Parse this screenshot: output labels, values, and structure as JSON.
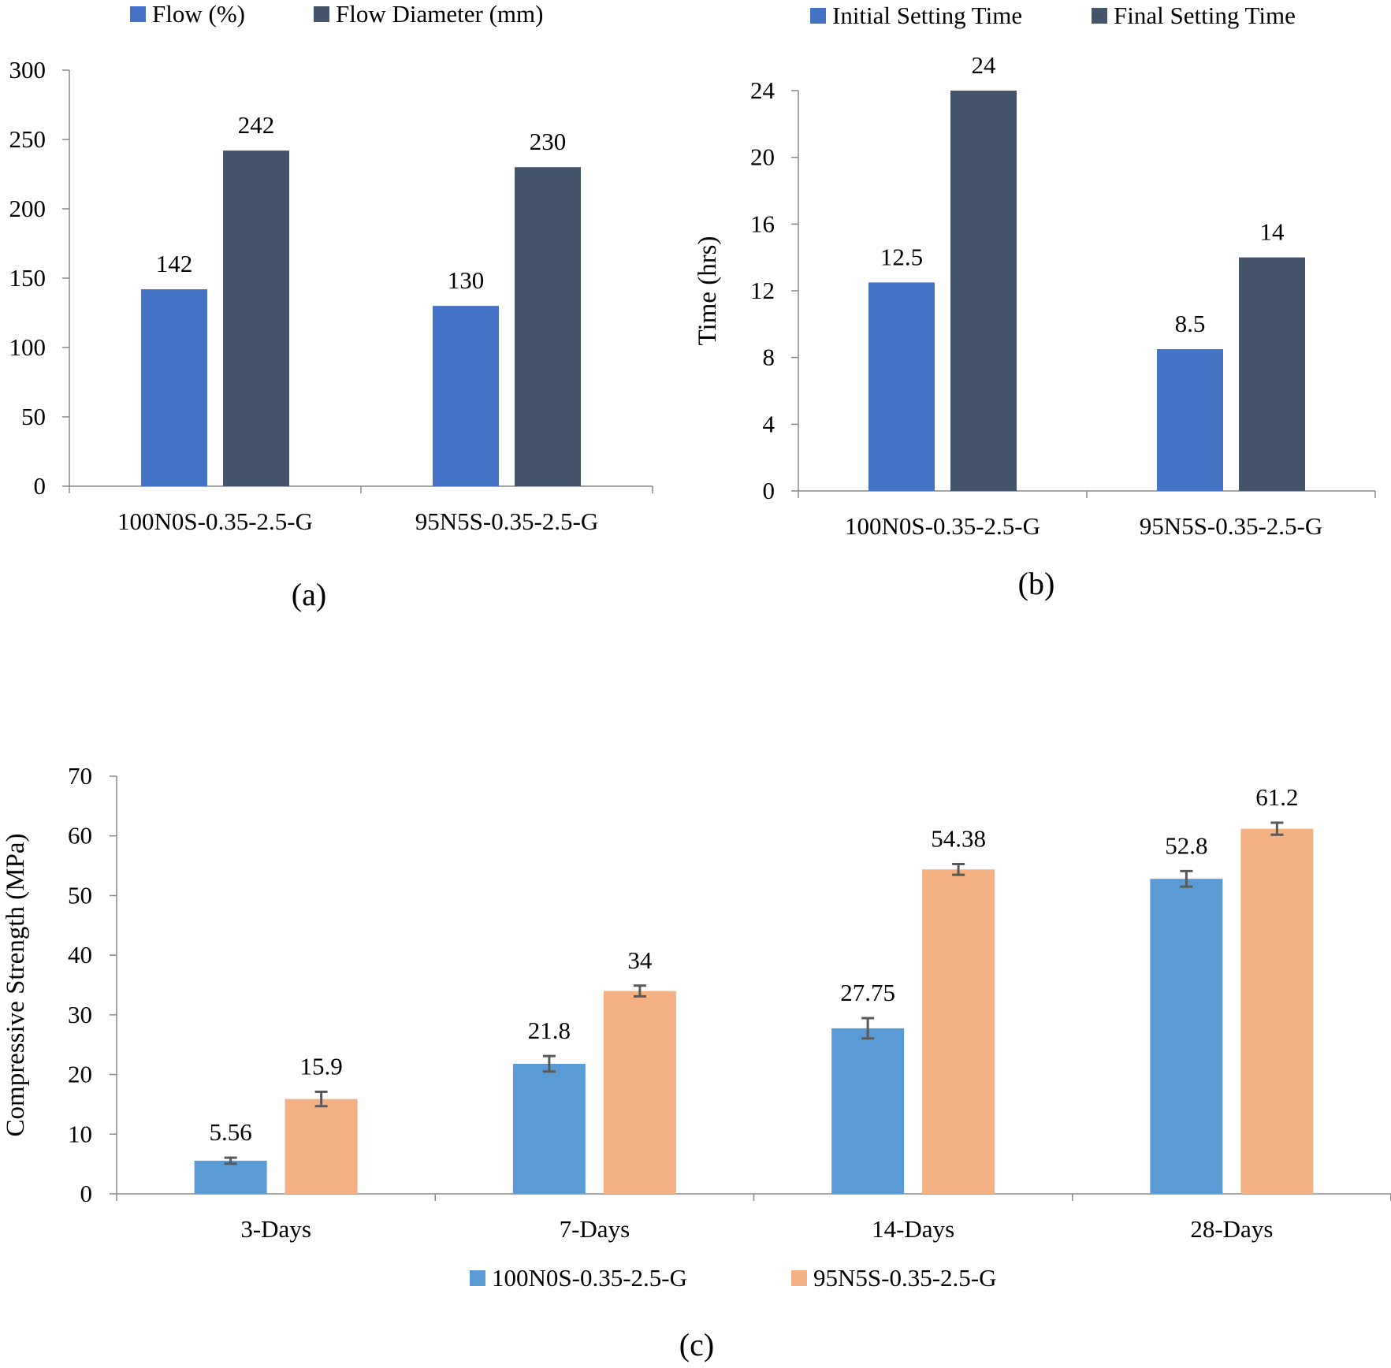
{
  "chart_data": [
    {
      "panel": "a",
      "panel_label": "(a)",
      "type": "bar",
      "title": "",
      "xlabel": "",
      "ylabel": "",
      "ylim": [
        0,
        300
      ],
      "yticks": [
        0,
        50,
        100,
        150,
        200,
        250,
        300
      ],
      "yticks_labels": [
        "0",
        "50",
        "100",
        "150",
        "200",
        "250",
        "300"
      ],
      "categories": [
        "100N0S-0.35-2.5-G",
        "95N5S-0.35-2.5-G"
      ],
      "series": [
        {
          "name": "Flow (%)",
          "color": "#4472C4",
          "values": [
            142,
            130
          ],
          "labels": [
            "142",
            "130"
          ]
        },
        {
          "name": "Flow Diameter (mm)",
          "color": "#44546A",
          "values": [
            242,
            230
          ],
          "labels": [
            "242",
            "230"
          ]
        }
      ],
      "legend": "top",
      "grid": false
    },
    {
      "panel": "b",
      "panel_label": "(b)",
      "type": "bar",
      "title": "",
      "xlabel": "",
      "ylabel": "Time (hrs)",
      "ylim": [
        0,
        24
      ],
      "yticks": [
        0,
        4,
        8,
        12,
        16,
        20,
        24
      ],
      "yticks_labels": [
        "0",
        "4",
        "8",
        "12",
        "16",
        "20",
        "24"
      ],
      "categories": [
        "100N0S-0.35-2.5-G",
        "95N5S-0.35-2.5-G"
      ],
      "series": [
        {
          "name": "Initial Setting Time",
          "color": "#4472C4",
          "values": [
            12.5,
            8.5
          ],
          "labels": [
            "12.5",
            "8.5"
          ]
        },
        {
          "name": "Final Setting Time",
          "color": "#44546A",
          "values": [
            24,
            14
          ],
          "labels": [
            "24",
            "14"
          ]
        }
      ],
      "legend": "top",
      "grid": false
    },
    {
      "panel": "c",
      "panel_label": "(c)",
      "type": "bar",
      "title": "",
      "xlabel": "",
      "ylabel": "Compressive Strength (MPa)",
      "ylim": [
        0,
        70
      ],
      "yticks": [
        0,
        10,
        20,
        30,
        40,
        50,
        60,
        70
      ],
      "yticks_labels": [
        "0",
        "10",
        "20",
        "30",
        "40",
        "50",
        "60",
        "70"
      ],
      "categories": [
        "3-Days",
        "7-Days",
        "14-Days",
        "28-Days"
      ],
      "series": [
        {
          "name": "100N0S-0.35-2.5-G",
          "color": "#5B9BD5",
          "values": [
            5.56,
            21.8,
            27.75,
            52.8
          ],
          "labels": [
            "5.56",
            "21.8",
            "27.75",
            "52.8"
          ],
          "errors": [
            0.5,
            1.3,
            1.7,
            1.3
          ]
        },
        {
          "name": "95N5S-0.35-2.5-G",
          "color": "#F4B183",
          "values": [
            15.9,
            34,
            54.38,
            61.2
          ],
          "labels": [
            "15.9",
            "34",
            "54.38",
            "61.2"
          ],
          "errors": [
            1.2,
            0.9,
            0.9,
            1.0
          ]
        }
      ],
      "legend": "bottom",
      "grid": false
    }
  ]
}
